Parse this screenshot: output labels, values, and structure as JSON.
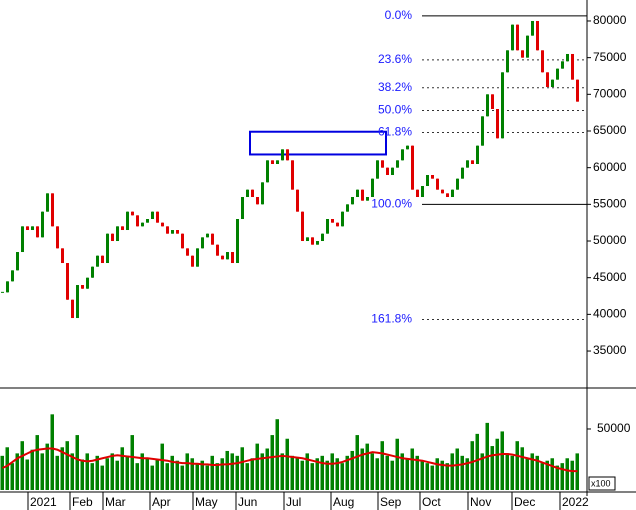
{
  "chart_data": {
    "type": "candlestick",
    "xlim": [
      0,
      117.4
    ],
    "xticks": [
      {
        "value": 5.6,
        "label": "2021"
      },
      {
        "value": 14,
        "label": "Feb"
      },
      {
        "value": 20.6,
        "label": "Mar"
      },
      {
        "value": 30,
        "label": "Apr"
      },
      {
        "value": 38.6,
        "label": "May"
      },
      {
        "value": 47.2,
        "label": "Jun"
      },
      {
        "value": 56.8,
        "label": "Jul"
      },
      {
        "value": 66.2,
        "label": "Aug"
      },
      {
        "value": 75.6,
        "label": "Sep"
      },
      {
        "value": 84,
        "label": "Oct"
      },
      {
        "value": 93.6,
        "label": "Nov"
      },
      {
        "value": 102.4,
        "label": "Dec"
      },
      {
        "value": 112,
        "label": "2022"
      }
    ],
    "ylim": [
      29960,
      82860
    ],
    "yticks": [
      35000,
      40000,
      45000,
      50000,
      55000,
      60000,
      65000,
      70000,
      75000,
      80000
    ],
    "up_color": "#008000",
    "down_color": "#e00000",
    "values": [
      43000,
      44500,
      46000,
      48500,
      52000,
      51500,
      52000,
      50500,
      54000,
      56500,
      52000,
      49000,
      47000,
      42000,
      39500,
      44000,
      43500,
      45000,
      46500,
      48000,
      47000,
      51000,
      50000,
      52000,
      51500,
      54000,
      53500,
      52000,
      52500,
      53000,
      54000,
      52500,
      52000,
      51000,
      51500,
      51000,
      49000,
      48000,
      46500,
      49000,
      50500,
      51000,
      49500,
      48000,
      47500,
      48500,
      47000,
      53000,
      56000,
      57000,
      56000,
      55000,
      58000,
      61000,
      60500,
      61000,
      62500,
      61000,
      57000,
      54000,
      50000,
      50500,
      49500,
      50000,
      51000,
      53000,
      52500,
      52000,
      54000,
      55000,
      56000,
      57000,
      55500,
      56000,
      58500,
      61000,
      60000,
      59000,
      60000,
      61000,
      62500,
      63000,
      57000,
      56000,
      57500,
      59000,
      58500,
      57000,
      56500,
      56000,
      57000,
      58500,
      60000,
      61000,
      60500,
      63000,
      67000,
      70000,
      68000,
      64000,
      73000,
      76000,
      79500,
      76000,
      75000,
      78000,
      80000,
      76000,
      73000,
      71000,
      72000,
      73500,
      74500,
      75500,
      72000,
      69000
    ],
    "fib_levels": [
      {
        "label": "0.0%",
        "price": 80700,
        "style": "solid"
      },
      {
        "label": "23.6%",
        "price": 74700,
        "style": "dotted"
      },
      {
        "label": "38.2%",
        "price": 70900,
        "style": "dotted"
      },
      {
        "label": "50.0%",
        "price": 67800,
        "style": "dotted"
      },
      {
        "label": "61.8%",
        "price": 64800,
        "style": "dotted"
      },
      {
        "label": "100.0%",
        "price": 55000,
        "style": "solid"
      },
      {
        "label": "161.8%",
        "price": 39300,
        "style": "dotted"
      }
    ],
    "fib_color": "#1a1aff",
    "zone": [
      61800,
      64900
    ],
    "zone_color": "#0000e0",
    "volume": {
      "ylim": [
        0,
        80300
      ],
      "yticks": [
        50000
      ],
      "unit_label": "x100",
      "color": "#008000",
      "ma_color": "#e00000",
      "values": [
        28000,
        35000,
        22000,
        30000,
        40000,
        25000,
        33000,
        45000,
        30000,
        38000,
        62000,
        28000,
        35000,
        40000,
        30000,
        45000,
        25000,
        30000,
        22000,
        28000,
        20000,
        26000,
        30000,
        24000,
        35000,
        28000,
        45000,
        22000,
        30000,
        26000,
        20000,
        25000,
        38000,
        22000,
        28000,
        24000,
        20000,
        30000,
        26000,
        22000,
        24000,
        20000,
        28000,
        22000,
        26000,
        32000,
        30000,
        28000,
        35000,
        22000,
        26000,
        38000,
        30000,
        34000,
        45000,
        58000,
        30000,
        42000,
        28000,
        26000,
        24000,
        30000,
        22000,
        26000,
        28000,
        24000,
        30000,
        26000,
        22000,
        28000,
        32000,
        45000,
        34000,
        38000,
        30000,
        26000,
        40000,
        28000,
        24000,
        42000,
        30000,
        26000,
        34000,
        28000,
        24000,
        22000,
        20000,
        26000,
        24000,
        22000,
        30000,
        34000,
        28000,
        26000,
        40000,
        46000,
        30000,
        55000,
        36000,
        42000,
        48000,
        30000,
        28000,
        40000,
        35000,
        26000,
        30000,
        28000,
        22000,
        24000,
        26000,
        20000,
        22000,
        26000,
        24000,
        30000
      ],
      "ma": [
        18000,
        20000,
        23000,
        26000,
        28000,
        30000,
        32000,
        33000,
        33500,
        34000,
        34000,
        33000,
        31000,
        29000,
        27000,
        25000,
        24000,
        23500,
        24000,
        25000,
        26000,
        27000,
        28000,
        28500,
        28000,
        27500,
        27000,
        26500,
        26000,
        26000,
        25500,
        25000,
        24500,
        24000,
        23000,
        22500,
        22000,
        22000,
        21500,
        21500,
        21000,
        21000,
        20500,
        20500,
        21000,
        21000,
        21500,
        22000,
        23000,
        24000,
        25000,
        25500,
        26000,
        26500,
        27000,
        27500,
        28000,
        27500,
        27000,
        26500,
        26000,
        25000,
        24000,
        23000,
        22000,
        21500,
        21500,
        22000,
        23000,
        24500,
        26000,
        27500,
        29000,
        30000,
        31000,
        30500,
        30000,
        29000,
        28000,
        27000,
        26000,
        25500,
        25000,
        24500,
        24000,
        23000,
        22000,
        21000,
        20500,
        20000,
        20000,
        20500,
        21000,
        22000,
        23000,
        24500,
        26000,
        27500,
        28500,
        29000,
        29500,
        29500,
        29000,
        28000,
        27000,
        26000,
        25000,
        24000,
        22500,
        21000,
        19500,
        18000,
        17000,
        16000,
        15500,
        15500
      ]
    }
  }
}
